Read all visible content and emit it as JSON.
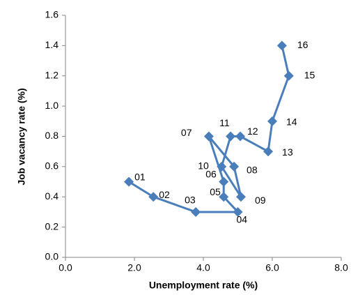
{
  "chart_data": {
    "type": "line",
    "x_label": "Unemployment rate (%)",
    "y_label": "Job vacancy rate (%)",
    "x": [
      1.84,
      2.55,
      3.78,
      5.0,
      4.59,
      4.59,
      4.16,
      4.89,
      5.09,
      4.53,
      4.79,
      5.07,
      5.88,
      6.0,
      6.48,
      6.28
    ],
    "values": [
      0.5,
      0.4,
      0.3,
      0.3,
      0.4,
      0.5,
      0.8,
      0.6,
      0.4,
      0.6,
      0.8,
      0.8,
      0.7,
      0.9,
      1.2,
      1.4
    ],
    "point_labels": [
      "01",
      "02",
      "03",
      "04",
      "05",
      "06",
      "07",
      "08",
      "09",
      "10",
      "11",
      "12",
      "13",
      "14",
      "15",
      "16"
    ],
    "color": "#4a7ebb",
    "xlim": [
      0,
      8
    ],
    "xticks": [
      {
        "value": 0,
        "label": "0.0"
      },
      {
        "value": 2,
        "label": "2.0"
      },
      {
        "value": 4,
        "label": "4.0"
      },
      {
        "value": 6,
        "label": "6.0"
      },
      {
        "value": 8,
        "label": "8.0"
      }
    ],
    "ylim": [
      0,
      1.6
    ],
    "yticks": [
      {
        "value": 0,
        "label": "0.0"
      },
      0.2,
      0.4,
      0.6,
      0.8,
      {
        "value": 1,
        "label": "1.0"
      },
      1.2,
      1.4,
      1.6
    ],
    "grid": false
  }
}
